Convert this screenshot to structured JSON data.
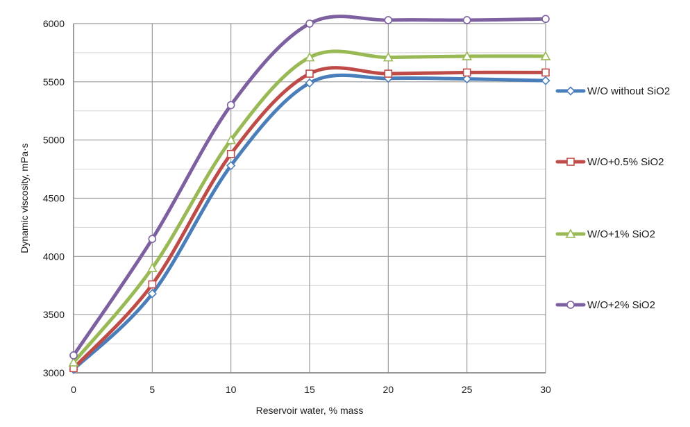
{
  "chart_data": {
    "type": "line",
    "title": "",
    "xlabel": "Reservoir water, % mass",
    "ylabel": "Dynamic viscosity, mPa·s",
    "x": [
      0,
      5,
      10,
      15,
      20,
      25,
      30
    ],
    "xlim": [
      0,
      30
    ],
    "ylim": [
      3000,
      6000
    ],
    "x_ticks": [
      0,
      5,
      10,
      15,
      20,
      25,
      30
    ],
    "y_ticks": [
      3000,
      3500,
      4000,
      4500,
      5000,
      5500,
      6000
    ],
    "grid": "on",
    "smoothed": true,
    "legend_position": "right",
    "series": [
      {
        "name": "W/O without SiO2",
        "values": [
          3030,
          3680,
          4780,
          5490,
          5530,
          5525,
          5510
        ],
        "color": "#4a7ebb",
        "marker": "diamond"
      },
      {
        "name": "W/O+0.5% SiO2",
        "values": [
          3040,
          3760,
          4880,
          5570,
          5570,
          5580,
          5580
        ],
        "color": "#be4b48",
        "marker": "square"
      },
      {
        "name": "W/O+1% SiO2",
        "values": [
          3090,
          3900,
          5000,
          5710,
          5710,
          5720,
          5720
        ],
        "color": "#98b954",
        "marker": "triangle"
      },
      {
        "name": "W/O+2% SiO2",
        "values": [
          3150,
          4150,
          5300,
          6000,
          6030,
          6030,
          6040
        ],
        "color": "#7d60a0",
        "marker": "circle"
      }
    ]
  }
}
